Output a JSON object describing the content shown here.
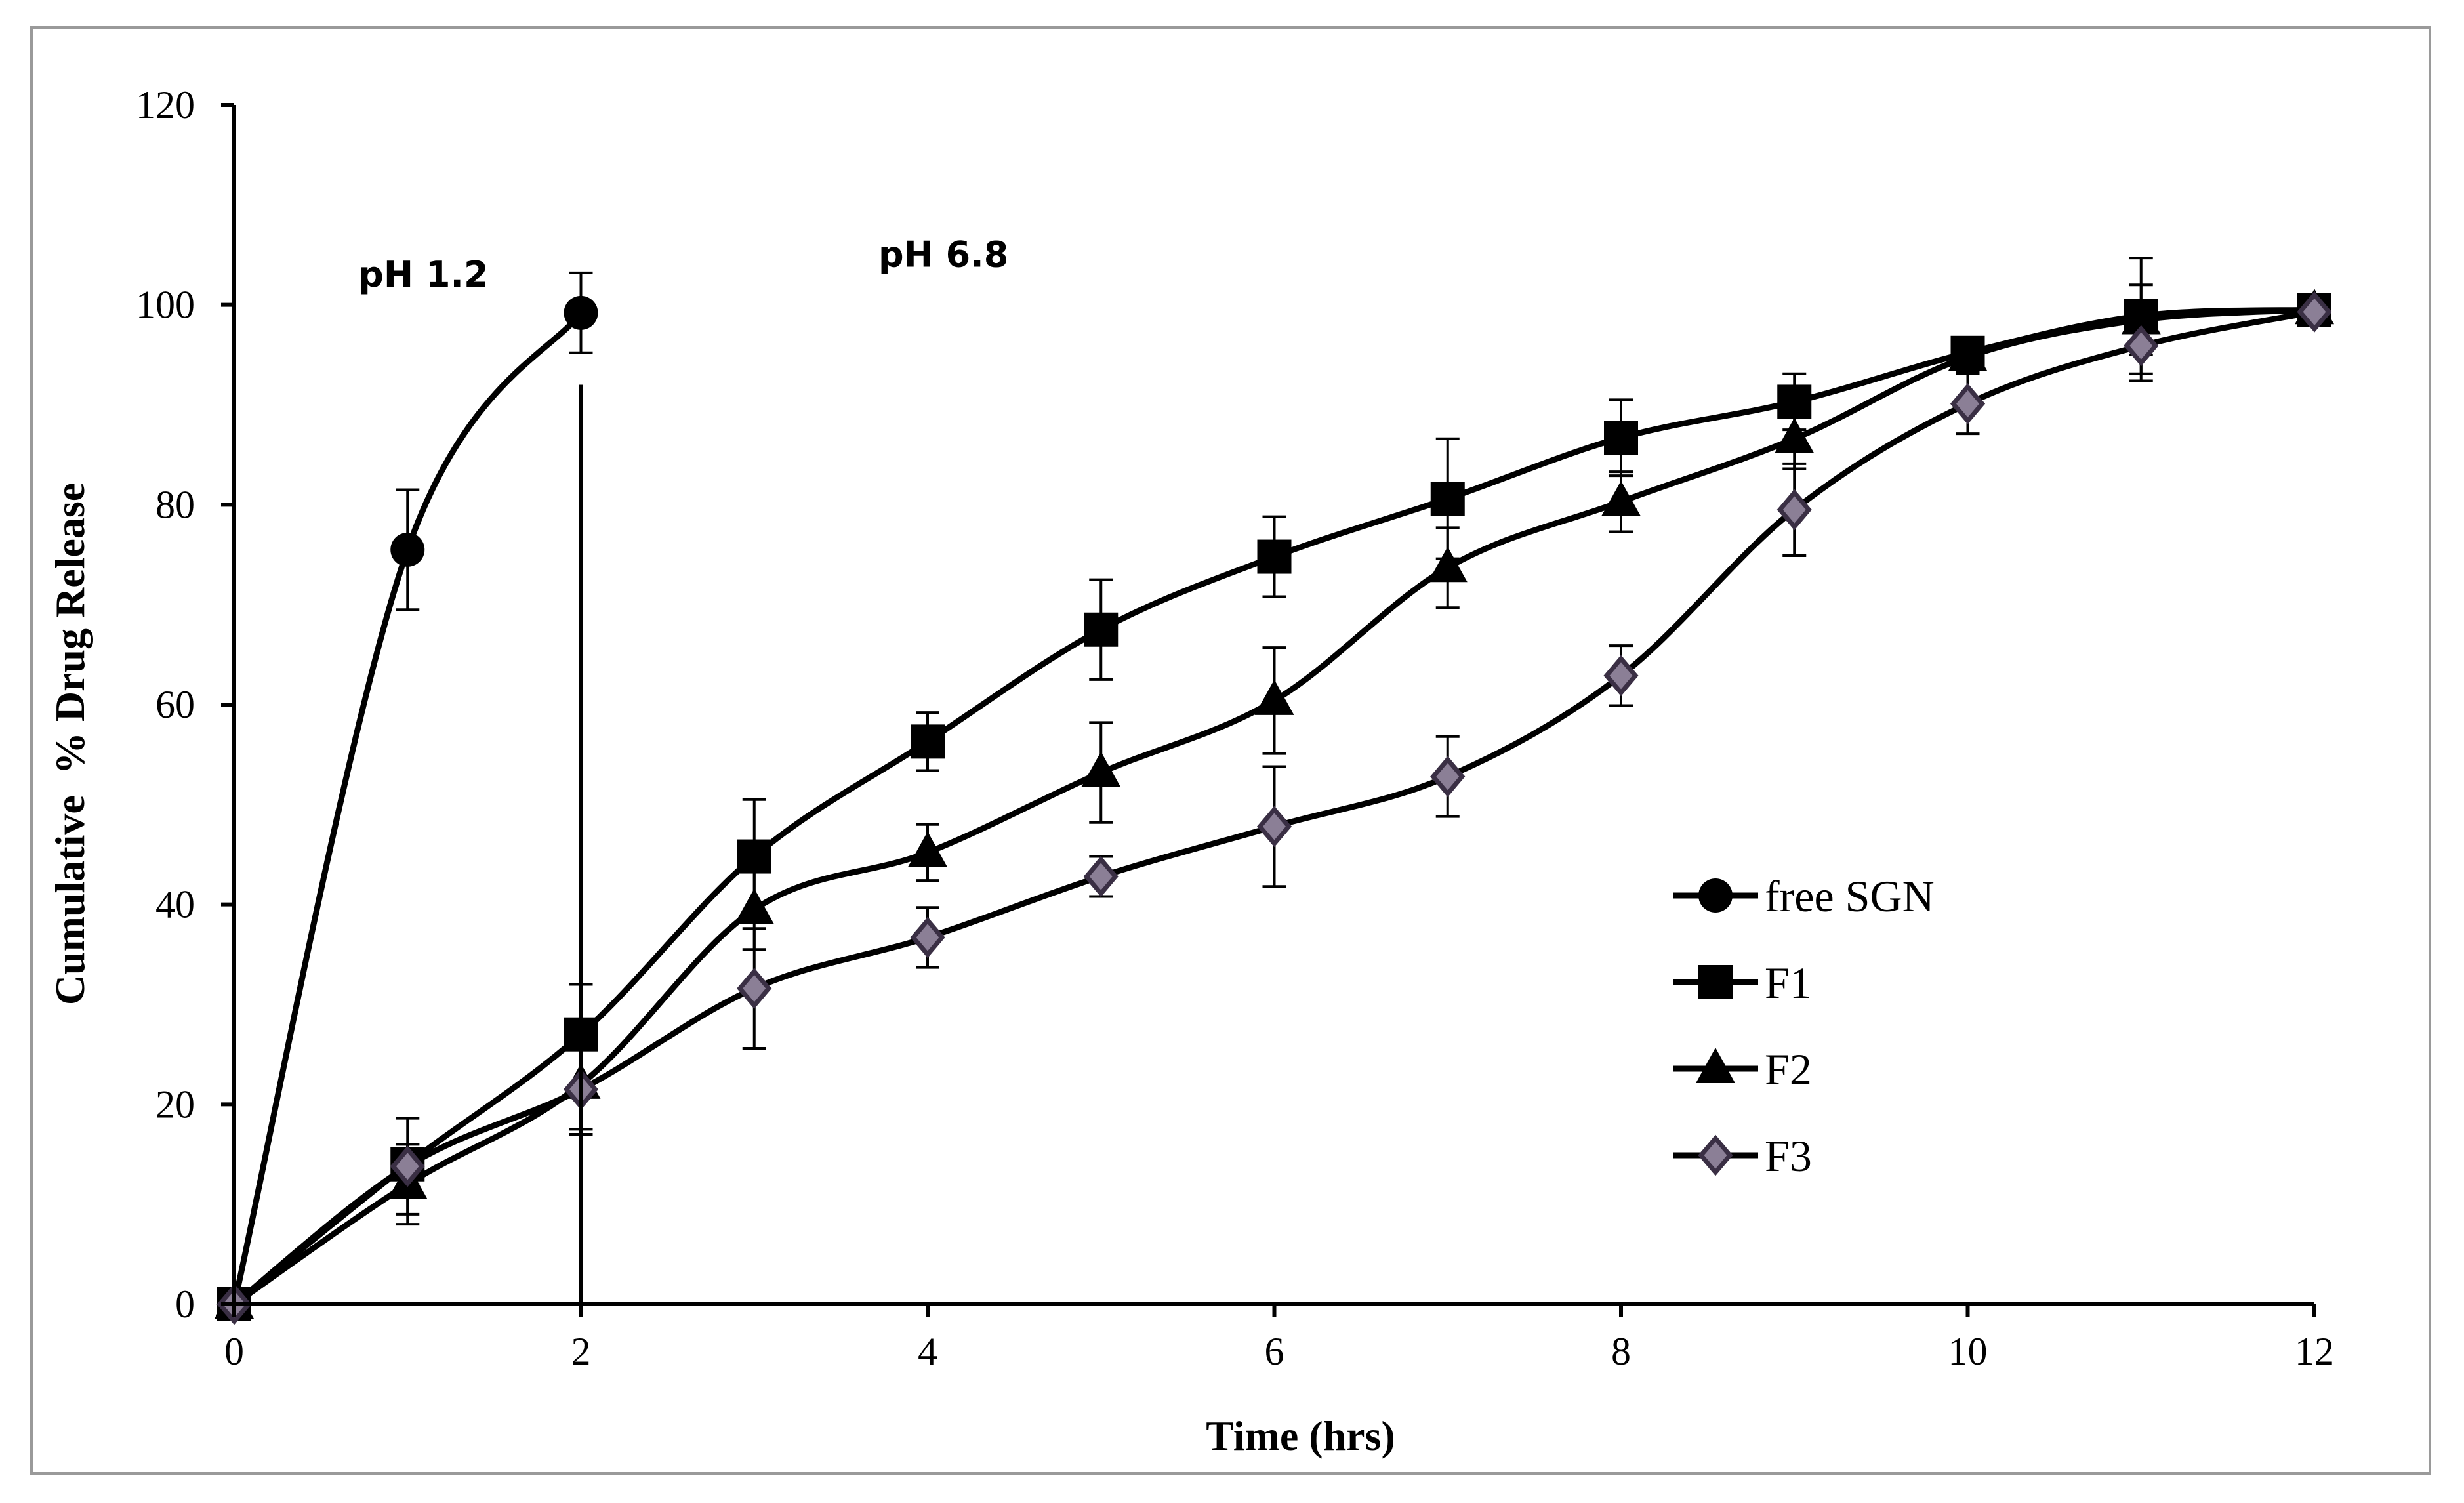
{
  "chart_data": {
    "type": "line",
    "title": "",
    "xlabel": "Time (hrs)",
    "ylabel": "Cumulative  % Drug Release",
    "xlim": [
      0,
      12
    ],
    "ylim": [
      0,
      120
    ],
    "xticks": [
      0,
      2,
      4,
      6,
      8,
      10,
      12
    ],
    "yticks": [
      0,
      20,
      40,
      60,
      80,
      100,
      120
    ],
    "grid": false,
    "legend_position": "center-right",
    "annotations": [
      {
        "text": "pH 1.2",
        "x": 1.0,
        "y": 103
      },
      {
        "text": "pH 6.8",
        "x": 4.0,
        "y": 105
      }
    ],
    "divider": {
      "x": 2,
      "y_from": 0,
      "y_to": 92
    },
    "series": [
      {
        "name": "free SGN",
        "marker": "circle",
        "x": [
          0,
          1,
          2
        ],
        "y": [
          0,
          75.5,
          99.2
        ],
        "err": [
          0,
          6,
          4
        ]
      },
      {
        "name": "F1",
        "marker": "square",
        "x": [
          0,
          1,
          2,
          3,
          4,
          5,
          6,
          7,
          8,
          9,
          10,
          11,
          12
        ],
        "y": [
          0,
          14,
          27,
          44.8,
          56.3,
          67.5,
          74.8,
          80.6,
          86.7,
          90.3,
          95.2,
          98.9,
          99.5
        ],
        "err": [
          0,
          2,
          5,
          5.7,
          2.9,
          5,
          4,
          6,
          3.8,
          2.8,
          1.5,
          5.8,
          0.5
        ]
      },
      {
        "name": "F2",
        "marker": "triangle",
        "x": [
          0,
          1,
          2,
          3,
          4,
          5,
          6,
          7,
          8,
          9,
          10,
          11,
          12
        ],
        "y": [
          0,
          12,
          22,
          39.5,
          45.2,
          53.2,
          60.4,
          73.7,
          80.3,
          86.6,
          94.8,
          98.5,
          99.5
        ],
        "err": [
          0,
          4,
          4.5,
          4,
          2.8,
          5,
          5.3,
          4,
          3,
          3,
          1.5,
          3.5,
          0.5
        ]
      },
      {
        "name": "F3",
        "marker": "diamond",
        "x": [
          0,
          1,
          2,
          3,
          4,
          5,
          6,
          7,
          8,
          9,
          10,
          11,
          12
        ],
        "y": [
          0,
          13.8,
          21.5,
          31.6,
          36.7,
          42.8,
          47.8,
          52.8,
          62.9,
          79.5,
          90.1,
          95.9,
          99.3
        ],
        "err": [
          0,
          4.8,
          4.5,
          6,
          3,
          2,
          6,
          4,
          3,
          4.6,
          3,
          3.5,
          0.5
        ]
      }
    ]
  },
  "colors": {
    "line": "#000000",
    "f3_marker_fill": "#8b7f96",
    "f3_marker_stroke": "#3a2f44"
  }
}
